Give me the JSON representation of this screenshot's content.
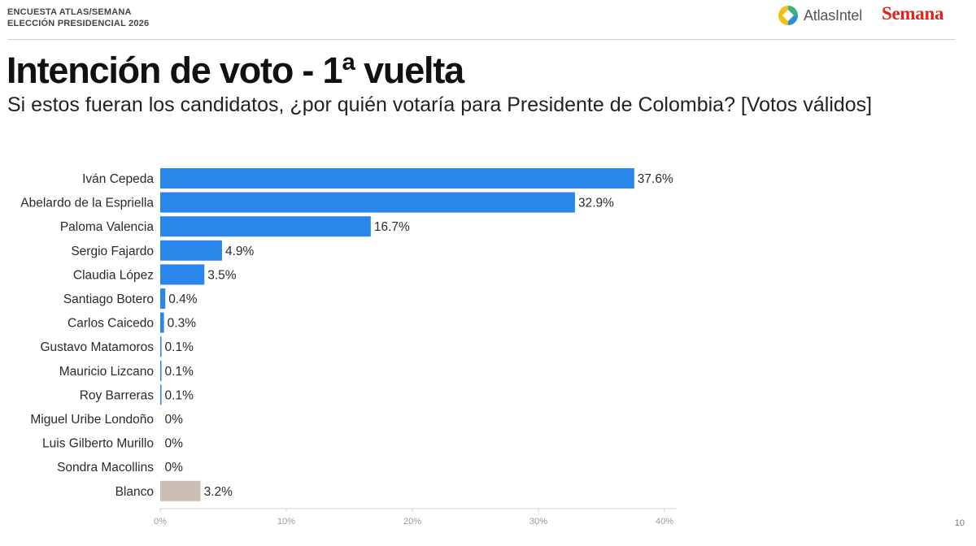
{
  "header": {
    "survey_line1": "ENCUESTA ATLAS/SEMANA",
    "survey_line2": "ELECCIÓN PRESIDENCIAL 2026",
    "atlas_logo_text": "AtlasIntel",
    "semana_logo_text": "Semana"
  },
  "title": "Intención de voto - 1ª vuelta",
  "subtitle": "Si estos fueran los candidatos, ¿por quién votaría para Presidente de Colombia? [Votos válidos]",
  "page_number": "10",
  "colors": {
    "candidate_bar": "#2b86ec",
    "blank_bar": "#cbbfb3",
    "semana_red": "#e0231c"
  },
  "chart_data": {
    "type": "bar",
    "orientation": "horizontal",
    "categories": [
      "Iván Cepeda",
      "Abelardo de la Espriella",
      "Paloma Valencia",
      "Sergio Fajardo",
      "Claudia López",
      "Santiago Botero",
      "Carlos Caicedo",
      "Gustavo Matamoros",
      "Mauricio Lizcano",
      "Roy Barreras",
      "Miguel Uribe Londoño",
      "Luis Gilberto Murillo",
      "Sondra Macollins",
      "Blanco"
    ],
    "values": [
      37.6,
      32.9,
      16.7,
      4.9,
      3.5,
      0.4,
      0.3,
      0.1,
      0.1,
      0.1,
      0,
      0,
      0,
      3.2
    ],
    "value_labels": [
      "37.6%",
      "32.9%",
      "16.7%",
      "4.9%",
      "3.5%",
      "0.4%",
      "0.3%",
      "0.1%",
      "0.1%",
      "0.1%",
      "0%",
      "0%",
      "0%",
      "3.2%"
    ],
    "bar_colors": [
      "#2b86ec",
      "#2b86ec",
      "#2b86ec",
      "#2b86ec",
      "#2b86ec",
      "#2b86ec",
      "#2b86ec",
      "#2b86ec",
      "#2b86ec",
      "#2b86ec",
      "#2b86ec",
      "#2b86ec",
      "#2b86ec",
      "#cbbfb3"
    ],
    "xlim": [
      0,
      40
    ],
    "x_ticks": [
      0,
      10,
      20,
      30,
      40
    ],
    "x_tick_labels": [
      "0%",
      "10%",
      "20%",
      "30%",
      "40%"
    ],
    "grid": false,
    "legend": "none"
  }
}
